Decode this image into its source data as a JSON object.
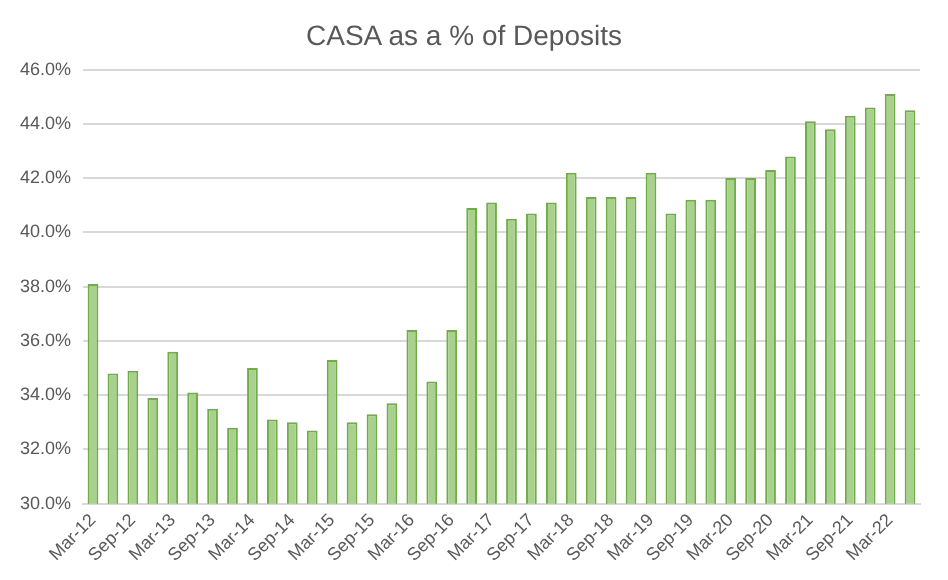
{
  "chart_data": {
    "type": "bar",
    "title": "CASA as a % of Deposits",
    "categories": [
      "Mar-12",
      null,
      "Sep-12",
      null,
      "Mar-13",
      null,
      "Sep-13",
      null,
      "Mar-14",
      null,
      "Sep-14",
      null,
      "Mar-15",
      null,
      "Sep-15",
      null,
      "Mar-16",
      null,
      "Sep-16",
      null,
      "Mar-17",
      null,
      "Sep-17",
      null,
      "Mar-18",
      null,
      "Sep-18",
      null,
      "Mar-19",
      null,
      "Sep-19",
      null,
      "Mar-20",
      null,
      "Sep-20",
      null,
      "Mar-21",
      null,
      "Sep-21",
      null,
      "Mar-22",
      null
    ],
    "values": [
      38.1,
      34.8,
      34.9,
      33.9,
      35.6,
      34.1,
      33.5,
      32.8,
      35.0,
      33.1,
      33.0,
      32.7,
      35.3,
      33.0,
      33.3,
      33.7,
      36.4,
      34.5,
      36.4,
      40.9,
      41.1,
      40.5,
      40.7,
      41.1,
      42.2,
      41.3,
      41.3,
      41.3,
      42.2,
      40.7,
      41.2,
      41.2,
      42.0,
      42.0,
      42.3,
      42.8,
      44.1,
      43.8,
      44.3,
      44.6,
      45.1,
      44.5
    ],
    "color": "#a9d18e",
    "ylim": [
      30,
      46
    ],
    "yticks": [
      {
        "value": 30,
        "label": "30.0%"
      },
      {
        "value": 32,
        "label": "32.0%"
      },
      {
        "value": 34,
        "label": "34.0%"
      },
      {
        "value": 36,
        "label": "36.0%"
      },
      {
        "value": 38,
        "label": "38.0%"
      },
      {
        "value": 40,
        "label": "40.0%"
      },
      {
        "value": 42,
        "label": "42.0%"
      },
      {
        "value": 44,
        "label": "44.0%"
      },
      {
        "value": 46,
        "label": "46.0%"
      }
    ],
    "grid": "y"
  }
}
